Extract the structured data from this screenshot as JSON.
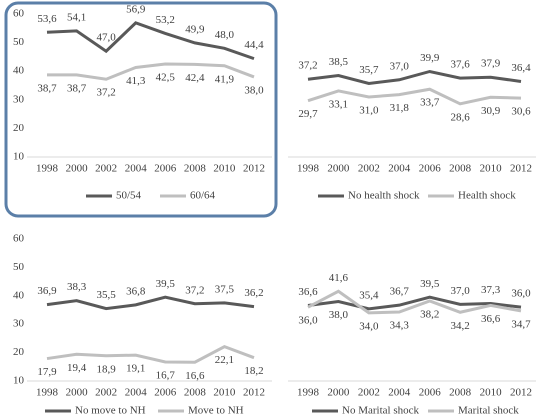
{
  "chart_data": [
    {
      "type": "line",
      "categories": [
        "1998",
        "2000",
        "2002",
        "2004",
        "2006",
        "2008",
        "2010",
        "2012"
      ],
      "ylim": [
        10,
        60
      ],
      "yticks": [
        10,
        20,
        30,
        40,
        50,
        60
      ],
      "series": [
        {
          "name": "50/54",
          "color": "#595959",
          "values": [
            53.6,
            54.1,
            47.0,
            56.9,
            53.2,
            49.9,
            48.0,
            44.4
          ],
          "value_labels": [
            "53,6",
            "54,1",
            "47,0",
            "56,9",
            "53,2",
            "49,9",
            "48,0",
            "44,4"
          ]
        },
        {
          "name": "60/64",
          "color": "#bfbfbf",
          "values": [
            38.7,
            38.7,
            37.2,
            41.3,
            42.5,
            42.4,
            41.9,
            38.0
          ],
          "value_labels": [
            "38,7",
            "38,7",
            "37,2",
            "41,3",
            "42,5",
            "42,4",
            "41,9",
            "38,0"
          ]
        }
      ]
    },
    {
      "type": "line",
      "categories": [
        "1998",
        "2000",
        "2002",
        "2004",
        "2006",
        "2008",
        "2010",
        "2012"
      ],
      "ylim": [
        10,
        60
      ],
      "series": [
        {
          "name": "No health shock",
          "color": "#595959",
          "values": [
            37.2,
            38.5,
            35.7,
            37.0,
            39.9,
            37.6,
            37.9,
            36.4
          ],
          "value_labels": [
            "37,2",
            "38,5",
            "35,7",
            "37,0",
            "39,9",
            "37,6",
            "37,9",
            "36,4"
          ]
        },
        {
          "name": "Health shock",
          "color": "#bfbfbf",
          "values": [
            29.7,
            33.1,
            31.0,
            31.8,
            33.7,
            28.6,
            30.9,
            30.6
          ],
          "value_labels": [
            "29,7",
            "33,1",
            "31,0",
            "31,8",
            "33,7",
            "28,6",
            "30,9",
            "30,6"
          ]
        }
      ]
    },
    {
      "type": "line",
      "categories": [
        "1998",
        "2000",
        "2002",
        "2004",
        "2006",
        "2008",
        "2010",
        "2012"
      ],
      "ylim": [
        10,
        60
      ],
      "yticks": [
        10,
        20,
        30,
        40,
        50,
        60
      ],
      "series": [
        {
          "name": "No move to NH",
          "color": "#595959",
          "values": [
            36.9,
            38.3,
            35.5,
            36.8,
            39.5,
            37.2,
            37.5,
            36.2
          ],
          "value_labels": [
            "36,9",
            "38,3",
            "35,5",
            "36,8",
            "39,5",
            "37,2",
            "37,5",
            "36,2"
          ]
        },
        {
          "name": "Move to NH",
          "color": "#bfbfbf",
          "values": [
            17.9,
            19.4,
            18.9,
            19.1,
            16.7,
            16.6,
            22.1,
            18.2
          ],
          "value_labels": [
            "17,9",
            "19,4",
            "18,9",
            "19,1",
            "16,7",
            "16,6",
            "22,1",
            "18,2"
          ]
        }
      ]
    },
    {
      "type": "line",
      "categories": [
        "1998",
        "2000",
        "2002",
        "2004",
        "2006",
        "2008",
        "2010",
        "2012"
      ],
      "ylim": [
        10,
        60
      ],
      "series": [
        {
          "name": "No Marital shock",
          "color": "#595959",
          "values": [
            36.6,
            38.0,
            35.4,
            36.7,
            39.5,
            37.0,
            37.3,
            36.0
          ],
          "value_labels": [
            "36,6",
            "38,0",
            "35,4",
            "36,7",
            "39,5",
            "37,0",
            "37,3",
            "36,0"
          ]
        },
        {
          "name": "Marital shock",
          "color": "#bfbfbf",
          "values": [
            36.0,
            41.6,
            34.0,
            34.3,
            38.2,
            34.2,
            36.6,
            34.7
          ],
          "value_labels": [
            "36,0",
            "41,6",
            "34,0",
            "34,3",
            "38,2",
            "34,2",
            "36,6",
            "34,7"
          ]
        }
      ]
    }
  ]
}
